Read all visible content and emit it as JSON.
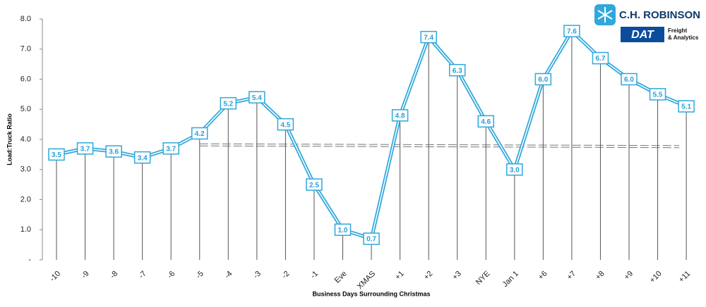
{
  "chart_data": {
    "type": "line",
    "y_label": "Load:Truck Ratio",
    "x_label": "Business Days Surrounding Christmas",
    "categories": [
      "-10",
      "-9",
      "-8",
      "-7",
      "-6",
      "-5",
      "-4",
      "-3",
      "-2",
      "-1",
      "Eve",
      "XMAS",
      "+1",
      "+2",
      "+3",
      "NYE",
      "Jan 1",
      "+6",
      "+7",
      "+8",
      "+9",
      "+10",
      "+11"
    ],
    "values": [
      3.5,
      3.7,
      3.6,
      3.4,
      3.7,
      4.2,
      5.2,
      5.4,
      4.5,
      2.5,
      1.0,
      0.7,
      4.8,
      7.4,
      6.3,
      4.6,
      3.0,
      6.0,
      7.6,
      6.7,
      6.0,
      5.5,
      5.1
    ],
    "value_labels": [
      "3.5",
      "3.7",
      "3.6",
      "3.4",
      "3.7",
      "4.2",
      "5.2",
      "5.4",
      "4.5",
      "2.5",
      "1.0",
      "0.7",
      "4.8",
      "7.4",
      "6.3",
      "4.6",
      "3.0",
      "6.0",
      "7.6",
      "6.7",
      "6.0",
      "5.5",
      "5.1"
    ],
    "color": "#2fa8dc",
    "ylim": [
      0,
      8
    ],
    "yticks": [
      {
        "value": 0,
        "label": "-"
      },
      {
        "value": 1,
        "label": "1.0"
      },
      {
        "value": 2,
        "label": "2.0"
      },
      {
        "value": 3,
        "label": "3.0"
      },
      {
        "value": 4,
        "label": "4.0"
      },
      {
        "value": 5,
        "label": "5.0"
      },
      {
        "value": 6,
        "label": "6.0"
      },
      {
        "value": 7,
        "label": "7.0"
      },
      {
        "value": 8,
        "label": "8.0"
      }
    ],
    "average_line": {
      "start": 3.82,
      "end": 3.76
    }
  },
  "logo": {
    "company": "C.H. ROBINSON",
    "brand": "DAT",
    "line1": "Freight",
    "line2": "& Analytics"
  }
}
